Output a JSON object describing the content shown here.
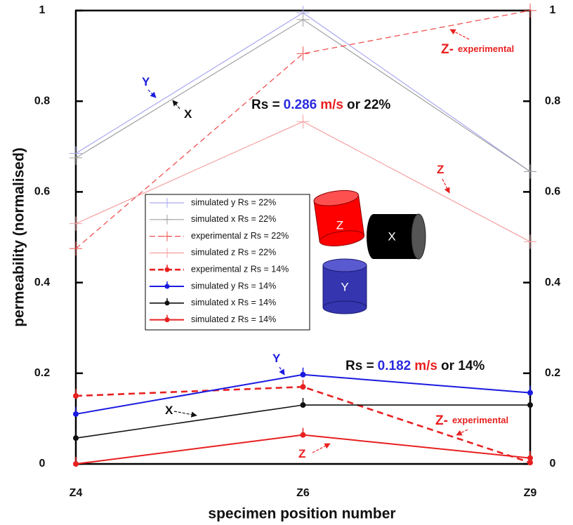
{
  "chart_data": {
    "type": "line",
    "x_label": "specimen position number",
    "y_label": "permeability (normalised)",
    "categories": [
      "Z4",
      "Z6",
      "Z9"
    ],
    "ylim": [
      0,
      1
    ],
    "yticks": [
      0,
      0.2,
      0.4,
      0.6,
      0.8,
      1
    ],
    "series": [
      {
        "name": "simulated y Rs = 22%",
        "color": "#a9a9f0",
        "dash": false,
        "width": 1.2,
        "marker": "plus",
        "values": [
          0.685,
          0.995,
          0.645
        ]
      },
      {
        "name": "simulated x Rs = 22%",
        "color": "#a0a0a0",
        "dash": false,
        "width": 1.2,
        "marker": "plus",
        "values": [
          0.675,
          0.98,
          0.645
        ]
      },
      {
        "name": "experimental z Rs = 22%",
        "color": "#f05050",
        "dash": true,
        "width": 1.3,
        "marker": "plus",
        "values": [
          0.475,
          0.905,
          1.0
        ]
      },
      {
        "name": "simulated z Rs = 22%",
        "color": "#f5a0a0",
        "dash": false,
        "width": 1.2,
        "marker": "plus",
        "values": [
          0.53,
          0.755,
          0.49
        ]
      },
      {
        "name": "experimental z Rs = 14%",
        "color": "#e82020",
        "dash": true,
        "width": 2.6,
        "marker": "dot",
        "values": [
          0.15,
          0.17,
          0.003
        ]
      },
      {
        "name": "simulated y Rs = 14%",
        "color": "#1a1ae0",
        "dash": false,
        "width": 2,
        "marker": "dot",
        "values": [
          0.11,
          0.197,
          0.157
        ]
      },
      {
        "name": "simulated x Rs = 14%",
        "color": "#111111",
        "dash": false,
        "width": 1.6,
        "marker": "dot",
        "values": [
          0.057,
          0.13,
          0.13
        ]
      },
      {
        "name": "simulated z Rs = 14%",
        "color": "#e82020",
        "dash": false,
        "width": 2,
        "marker": "dot",
        "values": [
          0.0,
          0.064,
          0.013
        ]
      }
    ],
    "annotations": [
      {
        "parts": [
          {
            "text": "Y",
            "color": "#1a1ae0"
          }
        ]
      },
      {
        "parts": [
          {
            "text": "X",
            "color": "#111111"
          }
        ]
      },
      {
        "parts": [
          {
            "text": "Z-",
            "color": "#e82020"
          },
          {
            "text": "experimental",
            "color": "#e82020"
          }
        ]
      },
      {
        "parts": [
          {
            "text": "Z",
            "color": "#e82020"
          }
        ]
      },
      {
        "parts": [
          {
            "text": "Rs =",
            "color": "#111111"
          },
          {
            "text": "0.286",
            "color": "#2a2ae0"
          },
          {
            "text": "m/s",
            "color": "#e82020"
          },
          {
            "text": "or 22%",
            "color": "#111111"
          }
        ]
      },
      {
        "parts": [
          {
            "text": "Y",
            "color": "#1a1ae0"
          }
        ]
      },
      {
        "parts": [
          {
            "text": "X",
            "color": "#111111"
          }
        ]
      },
      {
        "parts": [
          {
            "text": "Z-",
            "color": "#e82020"
          },
          {
            "text": "experimental",
            "color": "#e82020"
          }
        ]
      },
      {
        "parts": [
          {
            "text": "Z",
            "color": "#e82020"
          }
        ]
      },
      {
        "parts": [
          {
            "text": "Rs =",
            "color": "#111111"
          },
          {
            "text": "0.182",
            "color": "#2a2ae0"
          },
          {
            "text": "m/s",
            "color": "#e82020"
          },
          {
            "text": "or 14%",
            "color": "#111111"
          }
        ]
      }
    ],
    "icon_labels": [
      "Z",
      "X",
      "Y"
    ]
  }
}
